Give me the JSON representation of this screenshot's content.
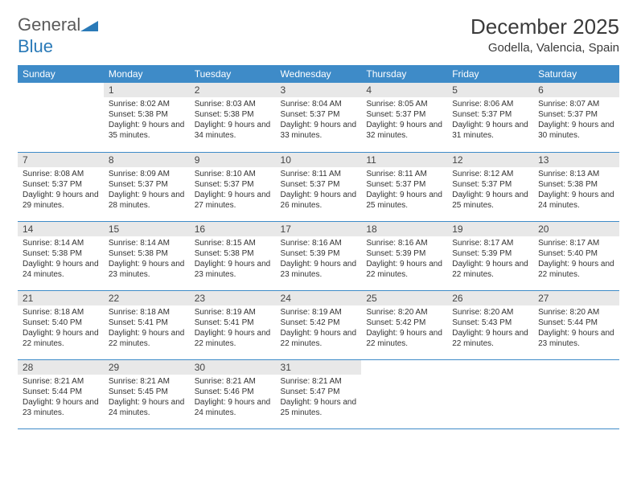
{
  "logo": {
    "general": "General",
    "blue": "Blue"
  },
  "header": {
    "title": "December 2025",
    "location": "Godella, Valencia, Spain"
  },
  "style": {
    "header_bg": "#3e8bc8",
    "header_fg": "#ffffff",
    "daynum_bg": "#e8e8e8",
    "border_color": "#3e8bc8",
    "text_color": "#333333",
    "title_fontsize": 26,
    "location_fontsize": 15,
    "th_fontsize": 12,
    "cell_fontsize": 10
  },
  "weekdays": [
    "Sunday",
    "Monday",
    "Tuesday",
    "Wednesday",
    "Thursday",
    "Friday",
    "Saturday"
  ],
  "weeks": [
    [
      {
        "day": "",
        "sunrise": "",
        "sunset": "",
        "daylight": ""
      },
      {
        "day": "1",
        "sunrise": "Sunrise: 8:02 AM",
        "sunset": "Sunset: 5:38 PM",
        "daylight": "Daylight: 9 hours and 35 minutes."
      },
      {
        "day": "2",
        "sunrise": "Sunrise: 8:03 AM",
        "sunset": "Sunset: 5:38 PM",
        "daylight": "Daylight: 9 hours and 34 minutes."
      },
      {
        "day": "3",
        "sunrise": "Sunrise: 8:04 AM",
        "sunset": "Sunset: 5:37 PM",
        "daylight": "Daylight: 9 hours and 33 minutes."
      },
      {
        "day": "4",
        "sunrise": "Sunrise: 8:05 AM",
        "sunset": "Sunset: 5:37 PM",
        "daylight": "Daylight: 9 hours and 32 minutes."
      },
      {
        "day": "5",
        "sunrise": "Sunrise: 8:06 AM",
        "sunset": "Sunset: 5:37 PM",
        "daylight": "Daylight: 9 hours and 31 minutes."
      },
      {
        "day": "6",
        "sunrise": "Sunrise: 8:07 AM",
        "sunset": "Sunset: 5:37 PM",
        "daylight": "Daylight: 9 hours and 30 minutes."
      }
    ],
    [
      {
        "day": "7",
        "sunrise": "Sunrise: 8:08 AM",
        "sunset": "Sunset: 5:37 PM",
        "daylight": "Daylight: 9 hours and 29 minutes."
      },
      {
        "day": "8",
        "sunrise": "Sunrise: 8:09 AM",
        "sunset": "Sunset: 5:37 PM",
        "daylight": "Daylight: 9 hours and 28 minutes."
      },
      {
        "day": "9",
        "sunrise": "Sunrise: 8:10 AM",
        "sunset": "Sunset: 5:37 PM",
        "daylight": "Daylight: 9 hours and 27 minutes."
      },
      {
        "day": "10",
        "sunrise": "Sunrise: 8:11 AM",
        "sunset": "Sunset: 5:37 PM",
        "daylight": "Daylight: 9 hours and 26 minutes."
      },
      {
        "day": "11",
        "sunrise": "Sunrise: 8:11 AM",
        "sunset": "Sunset: 5:37 PM",
        "daylight": "Daylight: 9 hours and 25 minutes."
      },
      {
        "day": "12",
        "sunrise": "Sunrise: 8:12 AM",
        "sunset": "Sunset: 5:37 PM",
        "daylight": "Daylight: 9 hours and 25 minutes."
      },
      {
        "day": "13",
        "sunrise": "Sunrise: 8:13 AM",
        "sunset": "Sunset: 5:38 PM",
        "daylight": "Daylight: 9 hours and 24 minutes."
      }
    ],
    [
      {
        "day": "14",
        "sunrise": "Sunrise: 8:14 AM",
        "sunset": "Sunset: 5:38 PM",
        "daylight": "Daylight: 9 hours and 24 minutes."
      },
      {
        "day": "15",
        "sunrise": "Sunrise: 8:14 AM",
        "sunset": "Sunset: 5:38 PM",
        "daylight": "Daylight: 9 hours and 23 minutes."
      },
      {
        "day": "16",
        "sunrise": "Sunrise: 8:15 AM",
        "sunset": "Sunset: 5:38 PM",
        "daylight": "Daylight: 9 hours and 23 minutes."
      },
      {
        "day": "17",
        "sunrise": "Sunrise: 8:16 AM",
        "sunset": "Sunset: 5:39 PM",
        "daylight": "Daylight: 9 hours and 23 minutes."
      },
      {
        "day": "18",
        "sunrise": "Sunrise: 8:16 AM",
        "sunset": "Sunset: 5:39 PM",
        "daylight": "Daylight: 9 hours and 22 minutes."
      },
      {
        "day": "19",
        "sunrise": "Sunrise: 8:17 AM",
        "sunset": "Sunset: 5:39 PM",
        "daylight": "Daylight: 9 hours and 22 minutes."
      },
      {
        "day": "20",
        "sunrise": "Sunrise: 8:17 AM",
        "sunset": "Sunset: 5:40 PM",
        "daylight": "Daylight: 9 hours and 22 minutes."
      }
    ],
    [
      {
        "day": "21",
        "sunrise": "Sunrise: 8:18 AM",
        "sunset": "Sunset: 5:40 PM",
        "daylight": "Daylight: 9 hours and 22 minutes."
      },
      {
        "day": "22",
        "sunrise": "Sunrise: 8:18 AM",
        "sunset": "Sunset: 5:41 PM",
        "daylight": "Daylight: 9 hours and 22 minutes."
      },
      {
        "day": "23",
        "sunrise": "Sunrise: 8:19 AM",
        "sunset": "Sunset: 5:41 PM",
        "daylight": "Daylight: 9 hours and 22 minutes."
      },
      {
        "day": "24",
        "sunrise": "Sunrise: 8:19 AM",
        "sunset": "Sunset: 5:42 PM",
        "daylight": "Daylight: 9 hours and 22 minutes."
      },
      {
        "day": "25",
        "sunrise": "Sunrise: 8:20 AM",
        "sunset": "Sunset: 5:42 PM",
        "daylight": "Daylight: 9 hours and 22 minutes."
      },
      {
        "day": "26",
        "sunrise": "Sunrise: 8:20 AM",
        "sunset": "Sunset: 5:43 PM",
        "daylight": "Daylight: 9 hours and 22 minutes."
      },
      {
        "day": "27",
        "sunrise": "Sunrise: 8:20 AM",
        "sunset": "Sunset: 5:44 PM",
        "daylight": "Daylight: 9 hours and 23 minutes."
      }
    ],
    [
      {
        "day": "28",
        "sunrise": "Sunrise: 8:21 AM",
        "sunset": "Sunset: 5:44 PM",
        "daylight": "Daylight: 9 hours and 23 minutes."
      },
      {
        "day": "29",
        "sunrise": "Sunrise: 8:21 AM",
        "sunset": "Sunset: 5:45 PM",
        "daylight": "Daylight: 9 hours and 24 minutes."
      },
      {
        "day": "30",
        "sunrise": "Sunrise: 8:21 AM",
        "sunset": "Sunset: 5:46 PM",
        "daylight": "Daylight: 9 hours and 24 minutes."
      },
      {
        "day": "31",
        "sunrise": "Sunrise: 8:21 AM",
        "sunset": "Sunset: 5:47 PM",
        "daylight": "Daylight: 9 hours and 25 minutes."
      },
      {
        "day": "",
        "sunrise": "",
        "sunset": "",
        "daylight": ""
      },
      {
        "day": "",
        "sunrise": "",
        "sunset": "",
        "daylight": ""
      },
      {
        "day": "",
        "sunrise": "",
        "sunset": "",
        "daylight": ""
      }
    ]
  ]
}
